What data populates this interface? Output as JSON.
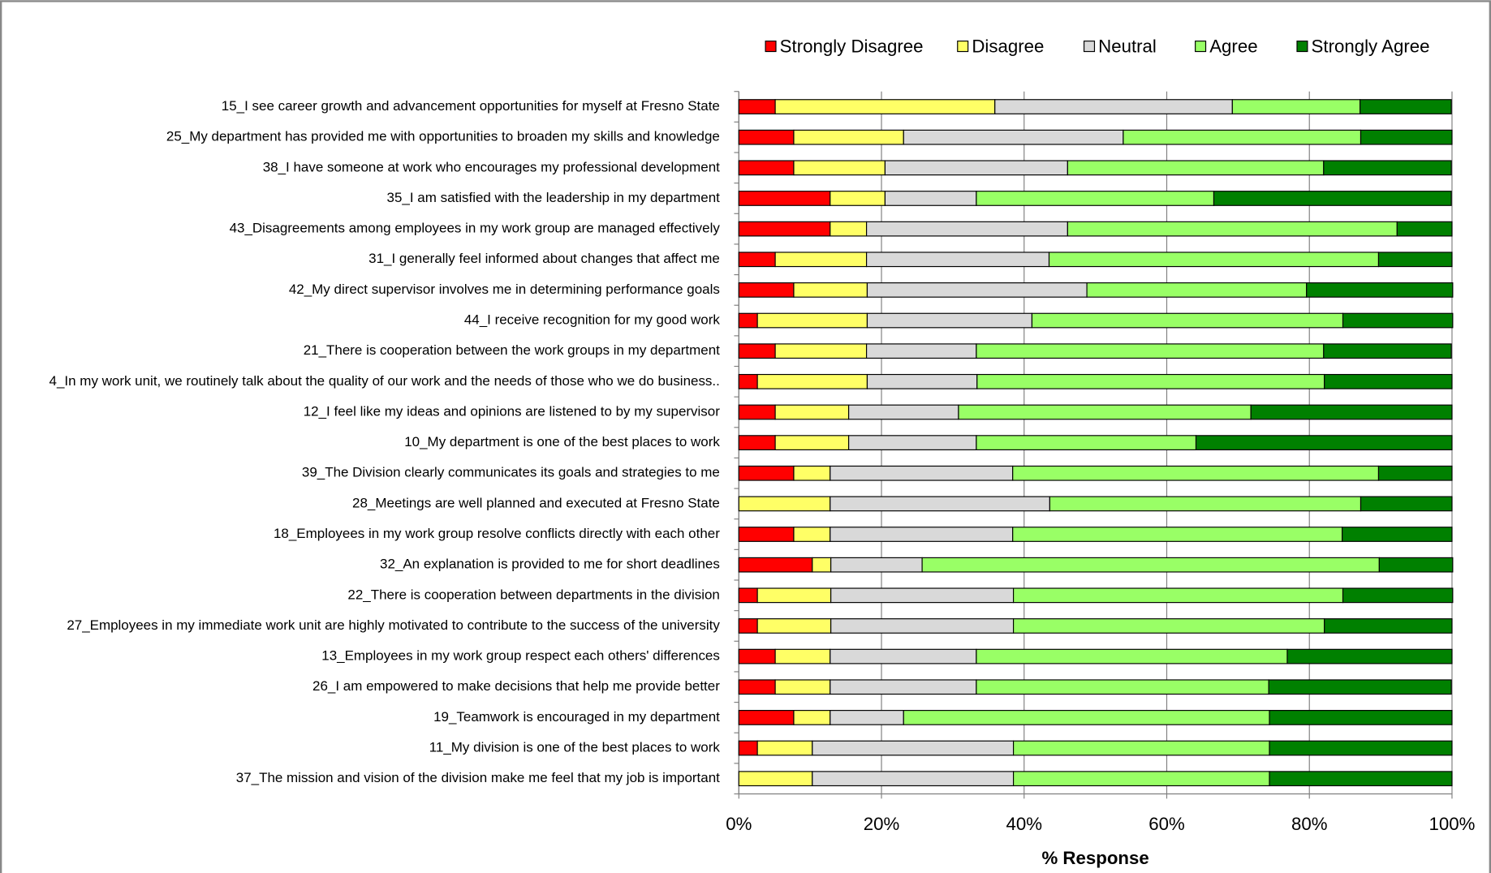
{
  "chart_data": {
    "type": "stacked-barh",
    "x_label": "% Response",
    "xlim": [
      0,
      100
    ],
    "xticks": [
      {
        "value": 0,
        "label": "0%"
      },
      {
        "value": 20,
        "label": "20%"
      },
      {
        "value": 40,
        "label": "40%"
      },
      {
        "value": 60,
        "label": "60%"
      },
      {
        "value": 80,
        "label": "80%"
      },
      {
        "value": 100,
        "label": "100%"
      }
    ],
    "grid": true,
    "legend": "top",
    "categories": [
      "15_I see career growth and advancement opportunities for myself at Fresno State",
      "25_My department has provided me with opportunities to broaden my skills and knowledge",
      "38_I have someone at work who encourages my professional development",
      "35_I am satisfied with the leadership in my department",
      "43_Disagreements among employees in my work group are managed effectively",
      "31_I generally feel informed about changes that affect me",
      "42_My direct supervisor involves me in determining performance goals",
      "44_I receive recognition for my good work",
      "21_There is cooperation between the work groups in my department",
      "4_In my work unit, we routinely talk about the quality of our work and the needs of those who we do business..",
      "12_I feel like my ideas and opinions are listened to by my supervisor",
      "10_My department is one of the best places to work",
      "39_The Division clearly communicates its goals and strategies to me",
      "28_Meetings are well planned and executed at Fresno State",
      "18_Employees in my work group resolve conflicts directly with each other",
      "32_An explanation is provided to me for short deadlines",
      "22_There is cooperation between departments in the division",
      "27_Employees in my immediate work unit are highly motivated to contribute to the success of the university",
      "13_Employees in my work group respect each others' differences",
      "26_I am empowered to make decisions that help me provide better",
      "19_Teamwork is encouraged in my department",
      "11_My division is one of the best places to work",
      "37_The mission and vision of the division make me feel that my job is important"
    ],
    "series": [
      {
        "name": "Strongly Disagree",
        "color": "#ff0000",
        "values": [
          5.1,
          7.7,
          7.7,
          12.8,
          12.8,
          5.1,
          7.7,
          2.6,
          5.1,
          2.6,
          5.1,
          5.1,
          7.7,
          0,
          7.7,
          10.3,
          2.6,
          2.6,
          5.1,
          5.1,
          7.7,
          2.6,
          0
        ]
      },
      {
        "name": "Disagree",
        "color": "#ffff66",
        "values": [
          30.8,
          15.4,
          12.8,
          7.7,
          5.1,
          12.8,
          10.3,
          15.4,
          12.8,
          15.4,
          10.3,
          10.3,
          5.1,
          12.8,
          5.1,
          2.6,
          10.3,
          10.3,
          7.7,
          7.7,
          5.1,
          7.7,
          10.3
        ]
      },
      {
        "name": "Neutral",
        "color": "#d9d9d9",
        "values": [
          33.3,
          30.8,
          25.6,
          12.8,
          28.2,
          25.6,
          30.8,
          23.1,
          15.4,
          15.4,
          15.4,
          17.9,
          25.6,
          30.8,
          25.6,
          12.8,
          25.6,
          25.6,
          20.5,
          20.5,
          10.3,
          28.2,
          28.2
        ]
      },
      {
        "name": "Agree",
        "color": "#99ff66",
        "values": [
          17.9,
          33.3,
          35.9,
          33.3,
          46.2,
          46.2,
          30.8,
          43.6,
          48.7,
          48.7,
          41.0,
          30.8,
          51.3,
          43.6,
          46.2,
          64.1,
          46.2,
          43.6,
          43.6,
          41.0,
          51.3,
          35.9,
          35.9
        ]
      },
      {
        "name": "Strongly Agree",
        "color": "#008000",
        "values": [
          12.8,
          12.8,
          17.9,
          33.3,
          7.7,
          10.3,
          20.5,
          15.4,
          17.9,
          17.9,
          28.2,
          35.9,
          10.3,
          12.8,
          15.4,
          10.3,
          15.4,
          17.9,
          23.1,
          25.6,
          25.6,
          25.6,
          25.6
        ]
      }
    ]
  }
}
